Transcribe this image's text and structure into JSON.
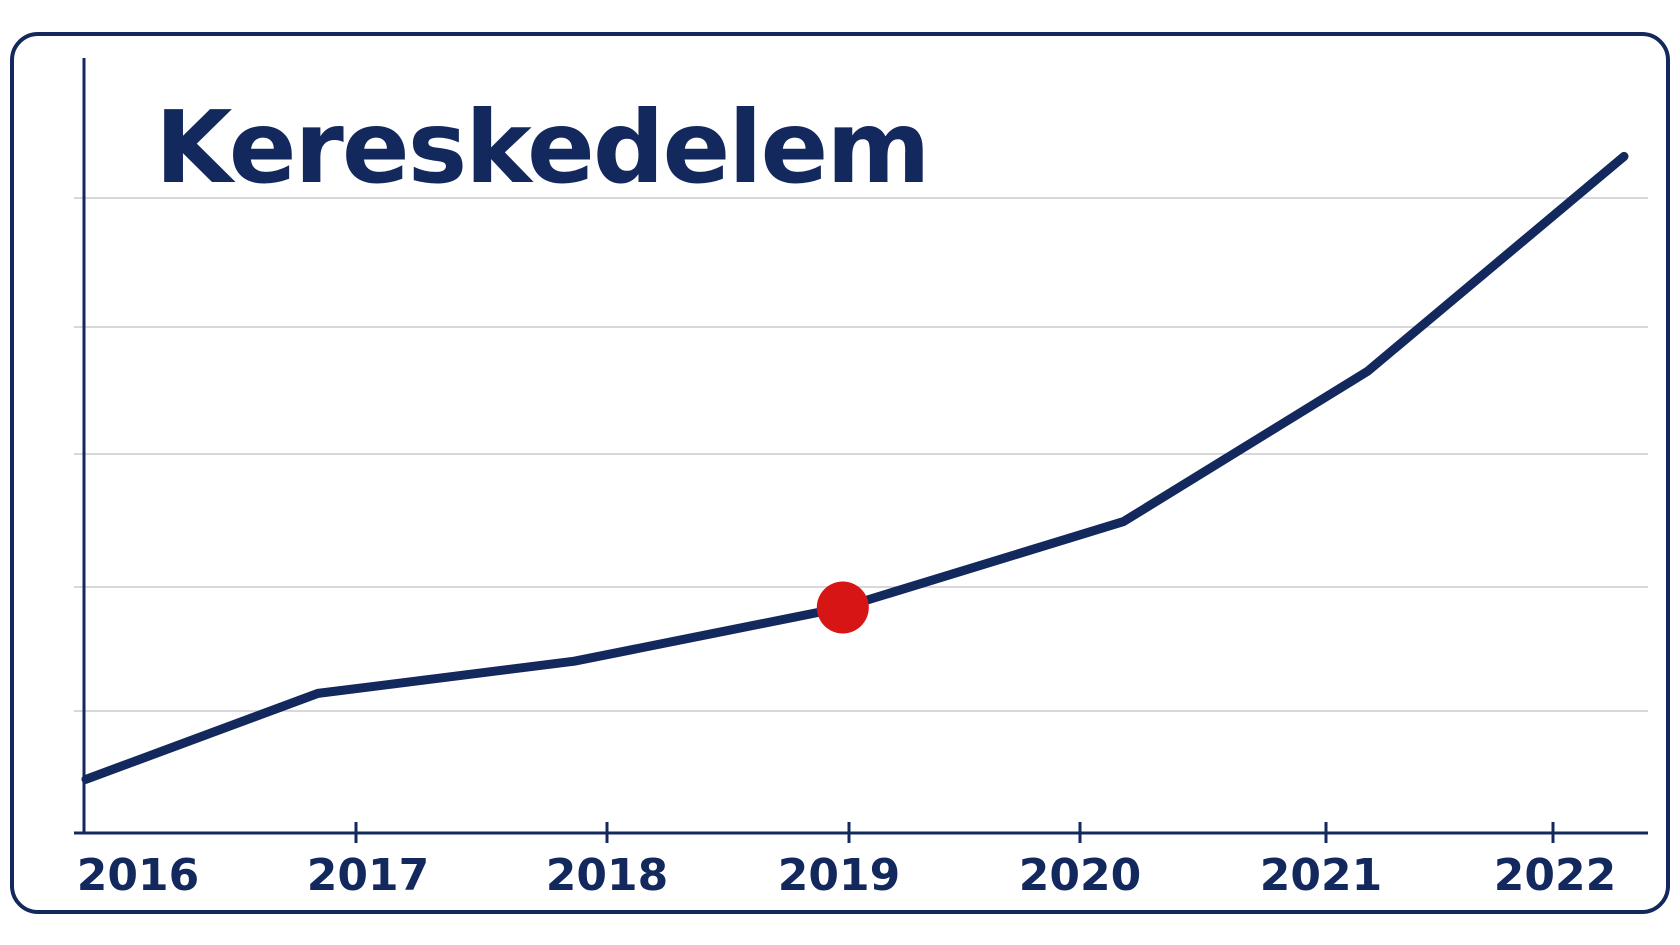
{
  "chart_data": {
    "type": "line",
    "title": "Kereskedelem",
    "xlabel": "",
    "ylabel": "",
    "categories": [
      "2016",
      "2017",
      "2018",
      "2019",
      "2020",
      "2021",
      "2022"
    ],
    "x": [
      2016,
      2016.95,
      2018,
      2019.1,
      2020.25,
      2021.25,
      2022.3
    ],
    "series": [
      {
        "values": [
          0.5,
          1.3,
          1.6,
          2.1,
          2.9,
          4.3,
          6.3
        ]
      }
    ],
    "highlight": {
      "x": 2019.1,
      "y": 2.1,
      "color": "#d71515"
    },
    "xlim": [
      2016,
      2022.3
    ],
    "ylim": [
      0,
      6.9
    ],
    "grid": true,
    "colors": {
      "line": "#13285c",
      "grid": "#d8d8dc",
      "frame": "#13285c",
      "marker": "#d71515"
    }
  }
}
